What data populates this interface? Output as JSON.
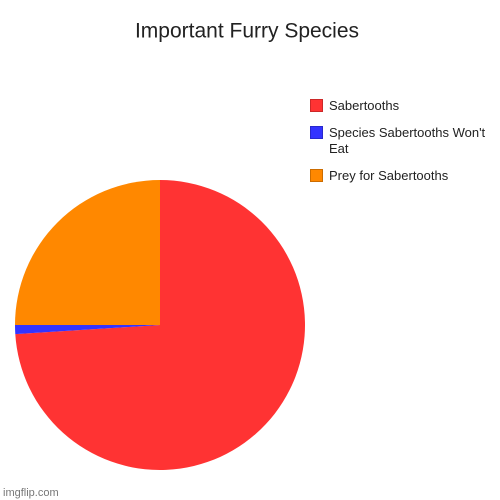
{
  "chart_data": {
    "type": "pie",
    "title": "Important Furry Species",
    "categories": [
      "Sabertooths",
      "Species Sabertooths Won't Eat",
      "Prey for Sabertooths"
    ],
    "values": [
      74,
      1,
      25
    ],
    "colors": [
      "#ff3333",
      "#3333ff",
      "#ff8800"
    ],
    "legend": "right"
  },
  "watermark": "imgflip.com"
}
